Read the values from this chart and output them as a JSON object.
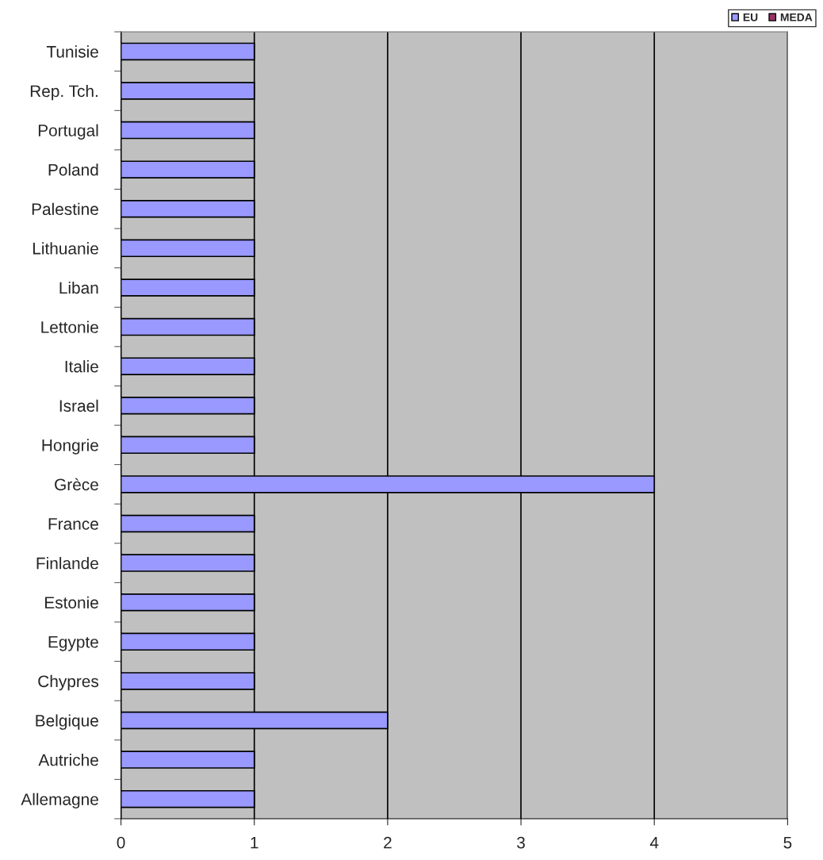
{
  "chart_data": {
    "type": "bar",
    "orientation": "horizontal",
    "categories": [
      "Tunisie",
      "Rep. Tch.",
      "Portugal",
      "Poland",
      "Palestine",
      "Lithuanie",
      "Liban",
      "Lettonie",
      "Italie",
      "Israel",
      "Hongrie",
      "Grèce",
      "France",
      "Finlande",
      "Estonie",
      "Egypte",
      "Chypres",
      "Belgique",
      "Autriche",
      "Allemagne"
    ],
    "series": [
      {
        "name": "EU",
        "color": "#9999ff",
        "values": [
          1,
          1,
          1,
          1,
          1,
          1,
          1,
          1,
          1,
          1,
          1,
          4,
          1,
          1,
          1,
          1,
          1,
          2,
          1,
          1
        ]
      },
      {
        "name": "MEDA",
        "color": "#993366",
        "values": [
          null,
          null,
          null,
          null,
          null,
          null,
          null,
          null,
          null,
          null,
          null,
          null,
          null,
          null,
          null,
          null,
          null,
          null,
          null,
          null
        ]
      }
    ],
    "xlim": [
      0,
      5
    ],
    "xticks": [
      0,
      1,
      2,
      3,
      4,
      5
    ],
    "grid": "x",
    "legend": "top right"
  }
}
